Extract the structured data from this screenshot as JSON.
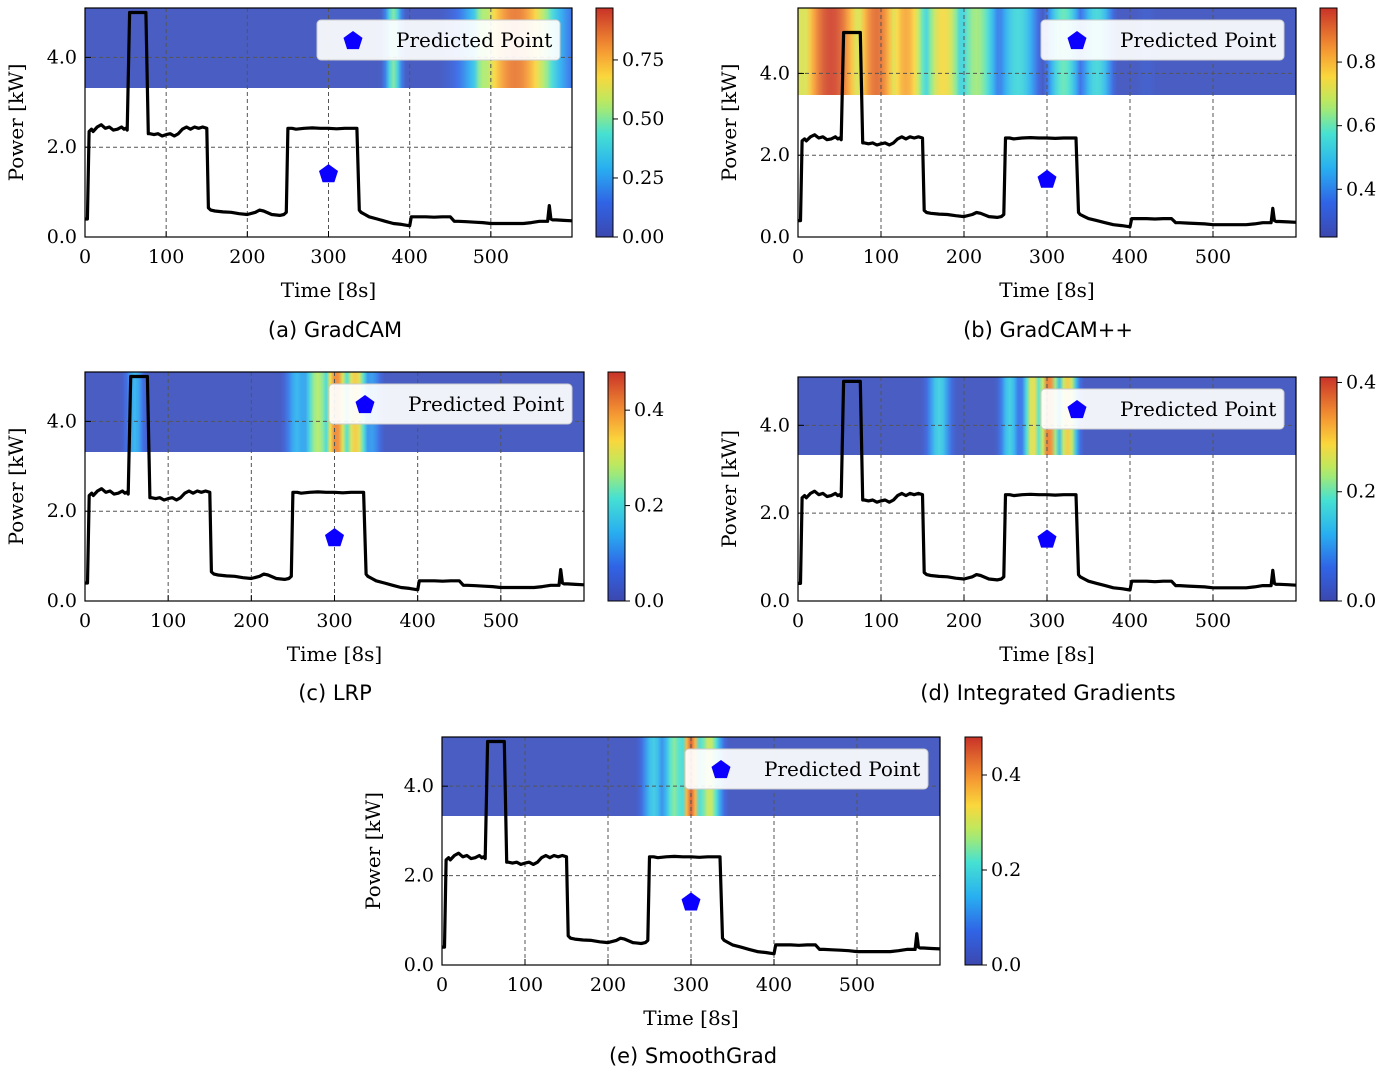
{
  "figure": {
    "captions": [
      "(a) GradCAM",
      "(b) GradCAM++",
      "(c) LRP",
      "(d) Integrated Gradients",
      "(e) SmoothGrad"
    ]
  },
  "colors": {
    "line": "#000000",
    "marker": "#0b00ff",
    "grid": "#555555",
    "colormap": "jet"
  },
  "chart_data": [
    {
      "type": "line",
      "caption": "(a) GradCAM",
      "xlabel": "Time [8s]",
      "ylabel": "Power [kW]",
      "xlim": [
        0,
        600
      ],
      "ylim": [
        0,
        5.1
      ],
      "xticks": [
        0,
        100,
        200,
        300,
        400,
        500
      ],
      "yticks": [
        0.0,
        2.0,
        4.0
      ],
      "ytick_labels": [
        "0.0",
        "2.0",
        "4.0"
      ],
      "grid": true,
      "legend": {
        "label": "Predicted Point",
        "placement": "top-right"
      },
      "heatmap_band": {
        "y_range": [
          3.3,
          5.1
        ],
        "colorbar_range": [
          0,
          0.97
        ],
        "colorbar_ticks": [
          0.0,
          0.25,
          0.5,
          0.75
        ],
        "colorbar_tick_labels": [
          "0.00",
          "0.25",
          "0.50",
          "0.75"
        ],
        "peaks": [
          {
            "x": 380,
            "value": 0.5,
            "width": 7
          },
          {
            "x": 488,
            "value": 0.6,
            "width": 5
          },
          {
            "x": 530,
            "value": 0.85,
            "width": 38
          },
          {
            "x": 568,
            "value": 0.55,
            "width": 5
          }
        ]
      },
      "predicted_point": {
        "x": 300,
        "y": 1.4
      }
    },
    {
      "type": "line",
      "caption": "(b) GradCAM++",
      "xlabel": "Time [8s]",
      "ylabel": "Power [kW]",
      "xlim": [
        0,
        600
      ],
      "ylim": [
        0,
        5.6
      ],
      "xticks": [
        0,
        100,
        200,
        300,
        400,
        500
      ],
      "yticks": [
        0.0,
        2.0,
        4.0
      ],
      "ytick_labels": [
        "0.0",
        "2.0",
        "4.0"
      ],
      "grid": true,
      "legend": {
        "label": "Predicted Point",
        "placement": "top-right"
      },
      "heatmap_band": {
        "y_range": [
          3.5,
          5.6
        ],
        "colorbar_range": [
          0.25,
          0.97
        ],
        "colorbar_ticks": [
          0.4,
          0.6,
          0.8
        ],
        "colorbar_tick_labels": [
          "0.4",
          "0.6",
          "0.8"
        ],
        "peaks": [
          {
            "x": 0,
            "value": 0.72,
            "width": 30
          },
          {
            "x": 40,
            "value": 0.95,
            "width": 40
          },
          {
            "x": 95,
            "value": 0.9,
            "width": 30
          },
          {
            "x": 130,
            "value": 0.82,
            "width": 25
          },
          {
            "x": 175,
            "value": 0.75,
            "width": 25
          },
          {
            "x": 215,
            "value": 0.65,
            "width": 25
          },
          {
            "x": 265,
            "value": 0.55,
            "width": 25
          },
          {
            "x": 320,
            "value": 0.6,
            "width": 20
          },
          {
            "x": 360,
            "value": 0.55,
            "width": 20
          },
          {
            "x": 420,
            "value": 0.3,
            "width": 30
          }
        ]
      },
      "predicted_point": {
        "x": 300,
        "y": 1.4
      }
    },
    {
      "type": "line",
      "caption": "(c) LRP",
      "xlabel": "Time [8s]",
      "ylabel": "Power [kW]",
      "xlim": [
        0,
        600
      ],
      "ylim": [
        0,
        5.1
      ],
      "xticks": [
        0,
        100,
        200,
        300,
        400,
        500
      ],
      "yticks": [
        0.0,
        2.0,
        4.0
      ],
      "ytick_labels": [
        "0.0",
        "2.0",
        "4.0"
      ],
      "grid": true,
      "legend": {
        "label": "Predicted Point",
        "placement": "top-right"
      },
      "heatmap_band": {
        "y_range": [
          3.3,
          5.1
        ],
        "colorbar_range": [
          0,
          0.48
        ],
        "colorbar_ticks": [
          0.0,
          0.2,
          0.4
        ],
        "colorbar_tick_labels": [
          "0.0",
          "0.2",
          "0.4"
        ],
        "peaks": [
          {
            "x": 60,
            "value": 0.15,
            "width": 8
          },
          {
            "x": 255,
            "value": 0.15,
            "width": 10
          },
          {
            "x": 280,
            "value": 0.28,
            "width": 12
          },
          {
            "x": 302,
            "value": 0.42,
            "width": 10
          },
          {
            "x": 325,
            "value": 0.35,
            "width": 10
          },
          {
            "x": 345,
            "value": 0.12,
            "width": 8
          }
        ]
      },
      "predicted_point": {
        "x": 300,
        "y": 1.4
      }
    },
    {
      "type": "line",
      "caption": "(d) Integrated Gradients",
      "xlabel": "Time [8s]",
      "ylabel": "Power [kW]",
      "xlim": [
        0,
        600
      ],
      "ylim": [
        0,
        5.1
      ],
      "xticks": [
        0,
        100,
        200,
        300,
        400,
        500
      ],
      "yticks": [
        0.0,
        2.0,
        4.0
      ],
      "ytick_labels": [
        "0.0",
        "2.0",
        "4.0"
      ],
      "grid": true,
      "legend": {
        "label": "Predicted Point",
        "placement": "top-right"
      },
      "heatmap_band": {
        "y_range": [
          3.3,
          5.1
        ],
        "colorbar_range": [
          0,
          0.41
        ],
        "colorbar_ticks": [
          0.0,
          0.2,
          0.4
        ],
        "colorbar_tick_labels": [
          "0.0",
          "0.2",
          "0.4"
        ],
        "peaks": [
          {
            "x": 170,
            "value": 0.16,
            "width": 10
          },
          {
            "x": 255,
            "value": 0.16,
            "width": 8
          },
          {
            "x": 283,
            "value": 0.28,
            "width": 8
          },
          {
            "x": 302,
            "value": 0.37,
            "width": 8
          },
          {
            "x": 325,
            "value": 0.3,
            "width": 8
          }
        ]
      },
      "predicted_point": {
        "x": 300,
        "y": 1.4
      }
    },
    {
      "type": "line",
      "caption": "(e) SmoothGrad",
      "xlabel": "Time [8s]",
      "ylabel": "Power [kW]",
      "xlim": [
        0,
        600
      ],
      "ylim": [
        0,
        5.1
      ],
      "xticks": [
        0,
        100,
        200,
        300,
        400,
        500
      ],
      "yticks": [
        0.0,
        2.0,
        4.0
      ],
      "ytick_labels": [
        "0.0",
        "2.0",
        "4.0"
      ],
      "grid": true,
      "legend": {
        "label": "Predicted Point",
        "placement": "top-right"
      },
      "heatmap_band": {
        "y_range": [
          3.3,
          5.1
        ],
        "colorbar_range": [
          0,
          0.48
        ],
        "colorbar_ticks": [
          0.0,
          0.2,
          0.4
        ],
        "colorbar_tick_labels": [
          "0.0",
          "0.2",
          "0.4"
        ],
        "peaks": [
          {
            "x": 255,
            "value": 0.18,
            "width": 10
          },
          {
            "x": 280,
            "value": 0.25,
            "width": 10
          },
          {
            "x": 300,
            "value": 0.45,
            "width": 8
          },
          {
            "x": 322,
            "value": 0.3,
            "width": 10
          }
        ]
      },
      "predicted_point": {
        "x": 300,
        "y": 1.4
      }
    }
  ],
  "power_series": {
    "x": [
      0,
      3,
      5,
      8,
      10,
      15,
      20,
      25,
      30,
      35,
      40,
      45,
      48,
      50,
      52,
      55,
      60,
      65,
      70,
      75,
      78,
      80,
      85,
      90,
      95,
      100,
      105,
      110,
      115,
      120,
      125,
      130,
      135,
      140,
      145,
      150,
      152,
      155,
      160,
      170,
      180,
      190,
      200,
      210,
      215,
      220,
      230,
      240,
      245,
      248,
      250,
      255,
      260,
      270,
      280,
      290,
      300,
      310,
      320,
      330,
      335,
      338,
      340,
      345,
      350,
      360,
      370,
      380,
      390,
      400,
      402,
      405,
      410,
      420,
      430,
      440,
      450,
      455,
      460,
      470,
      480,
      490,
      500,
      510,
      520,
      530,
      540,
      550,
      560,
      565,
      570,
      572,
      574,
      576,
      580,
      590,
      600
    ],
    "y": [
      0.4,
      0.4,
      2.35,
      2.4,
      2.35,
      2.45,
      2.5,
      2.42,
      2.45,
      2.38,
      2.4,
      2.45,
      2.4,
      2.42,
      2.38,
      5.0,
      5.0,
      5.0,
      5.0,
      5.0,
      2.3,
      2.3,
      2.28,
      2.3,
      2.25,
      2.28,
      2.3,
      2.25,
      2.3,
      2.4,
      2.45,
      2.4,
      2.45,
      2.42,
      2.45,
      2.42,
      0.65,
      0.6,
      0.58,
      0.56,
      0.55,
      0.52,
      0.5,
      0.55,
      0.6,
      0.58,
      0.5,
      0.48,
      0.5,
      0.55,
      2.42,
      2.42,
      2.4,
      2.42,
      2.43,
      2.42,
      2.42,
      2.41,
      2.42,
      2.42,
      2.42,
      0.6,
      0.55,
      0.5,
      0.45,
      0.4,
      0.35,
      0.3,
      0.28,
      0.25,
      0.45,
      0.45,
      0.45,
      0.45,
      0.44,
      0.45,
      0.45,
      0.35,
      0.35,
      0.34,
      0.33,
      0.32,
      0.3,
      0.3,
      0.3,
      0.3,
      0.3,
      0.32,
      0.35,
      0.35,
      0.35,
      0.7,
      0.4,
      0.38,
      0.38,
      0.37,
      0.36
    ]
  }
}
